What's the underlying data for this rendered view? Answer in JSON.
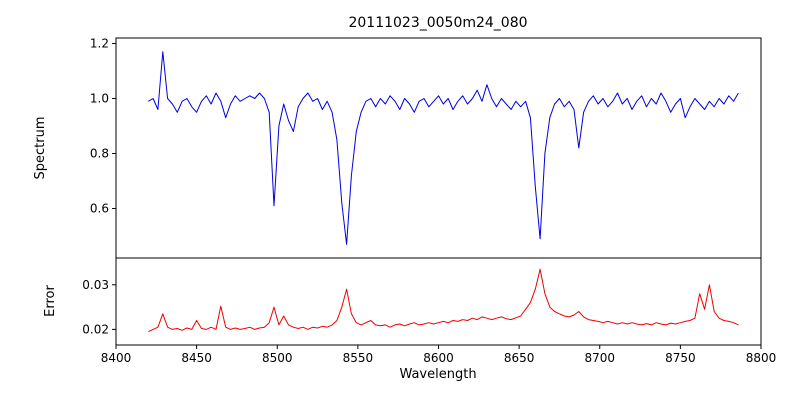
{
  "figure": {
    "background": "#ffffff"
  },
  "x_axis": {
    "label": "Wavelength",
    "lim": [
      8400,
      8800
    ],
    "ticks": [
      8400,
      8450,
      8500,
      8550,
      8600,
      8650,
      8700,
      8750,
      8800
    ],
    "tick_labels": [
      "8400",
      "8450",
      "8500",
      "8550",
      "8600",
      "8650",
      "8700",
      "8750",
      "8800"
    ]
  },
  "chart_data": [
    {
      "type": "line",
      "name": "spectrum",
      "title": "20111023_0050m24_080",
      "ylabel": "Spectrum",
      "color": "#0000dd",
      "ylim": [
        0.42,
        1.22
      ],
      "yticks": [
        0.6,
        0.8,
        1.0,
        1.2
      ],
      "ytick_labels": [
        "0.6",
        "0.8",
        "1.0",
        "1.2"
      ],
      "x_start": 8420,
      "x_step": 3,
      "annotations": [
        "absorption lines near 8498, 8542, 8662, 8688; emission spike near 8430"
      ],
      "values": [
        0.99,
        1.0,
        0.96,
        1.17,
        1.0,
        0.98,
        0.95,
        0.99,
        1.0,
        0.97,
        0.95,
        0.99,
        1.01,
        0.98,
        1.02,
        0.99,
        0.93,
        0.98,
        1.01,
        0.99,
        1.0,
        1.01,
        1.0,
        1.02,
        1.0,
        0.95,
        0.61,
        0.9,
        0.98,
        0.92,
        0.88,
        0.97,
        1.0,
        1.02,
        0.99,
        1.0,
        0.96,
        0.99,
        0.95,
        0.85,
        0.62,
        0.47,
        0.72,
        0.88,
        0.95,
        0.99,
        1.0,
        0.97,
        1.0,
        0.98,
        1.01,
        0.99,
        0.96,
        1.0,
        0.98,
        0.95,
        0.99,
        1.0,
        0.97,
        0.99,
        1.01,
        0.98,
        1.0,
        0.96,
        0.99,
        1.01,
        0.98,
        1.0,
        1.03,
        0.99,
        1.05,
        1.0,
        0.97,
        1.0,
        0.98,
        0.96,
        0.99,
        0.97,
        0.99,
        0.93,
        0.68,
        0.49,
        0.8,
        0.93,
        0.98,
        1.0,
        0.97,
        0.99,
        0.96,
        0.82,
        0.95,
        0.99,
        1.01,
        0.98,
        1.0,
        0.97,
        0.99,
        1.02,
        0.98,
        1.0,
        0.96,
        0.99,
        1.01,
        0.97,
        1.0,
        0.98,
        1.02,
        0.99,
        0.95,
        0.98,
        1.0,
        0.93,
        0.97,
        1.0,
        0.98,
        0.96,
        0.99,
        0.97,
        1.0,
        0.98,
        1.01,
        0.99,
        1.02
      ]
    },
    {
      "type": "line",
      "name": "error",
      "ylabel": "Error",
      "color": "#ee0000",
      "ylim": [
        0.0165,
        0.036
      ],
      "yticks": [
        0.02,
        0.03
      ],
      "ytick_labels": [
        "0.02",
        "0.03"
      ],
      "x_start": 8420,
      "x_step": 3,
      "annotations": [
        "error spikes near 8430, 8465, 8498, 8542, 8662, 8765"
      ],
      "values": [
        0.0195,
        0.02,
        0.0205,
        0.0235,
        0.0205,
        0.02,
        0.0202,
        0.0198,
        0.0203,
        0.02,
        0.022,
        0.0202,
        0.02,
        0.0205,
        0.02,
        0.0252,
        0.0205,
        0.02,
        0.0203,
        0.02,
        0.0202,
        0.0205,
        0.02,
        0.0203,
        0.0205,
        0.0215,
        0.025,
        0.021,
        0.023,
        0.021,
        0.0205,
        0.0202,
        0.0205,
        0.02,
        0.0205,
        0.0203,
        0.0207,
        0.0205,
        0.021,
        0.022,
        0.025,
        0.029,
        0.0235,
        0.0215,
        0.021,
        0.0215,
        0.022,
        0.021,
        0.0208,
        0.021,
        0.0205,
        0.021,
        0.0212,
        0.0208,
        0.0212,
        0.0215,
        0.021,
        0.0212,
        0.0215,
        0.0212,
        0.0215,
        0.0218,
        0.0215,
        0.022,
        0.0218,
        0.0222,
        0.022,
        0.0225,
        0.0222,
        0.0228,
        0.0225,
        0.0222,
        0.0225,
        0.0228,
        0.0224,
        0.0222,
        0.0226,
        0.023,
        0.0245,
        0.026,
        0.029,
        0.0335,
        0.028,
        0.025,
        0.024,
        0.0235,
        0.023,
        0.0228,
        0.0232,
        0.024,
        0.0228,
        0.0222,
        0.022,
        0.0218,
        0.0215,
        0.0218,
        0.0215,
        0.0212,
        0.0215,
        0.0212,
        0.0215,
        0.0212,
        0.021,
        0.0213,
        0.021,
        0.0215,
        0.0212,
        0.021,
        0.0214,
        0.0212,
        0.0215,
        0.0218,
        0.022,
        0.0225,
        0.028,
        0.0245,
        0.03,
        0.024,
        0.0225,
        0.022,
        0.0218,
        0.0215,
        0.021
      ]
    }
  ]
}
